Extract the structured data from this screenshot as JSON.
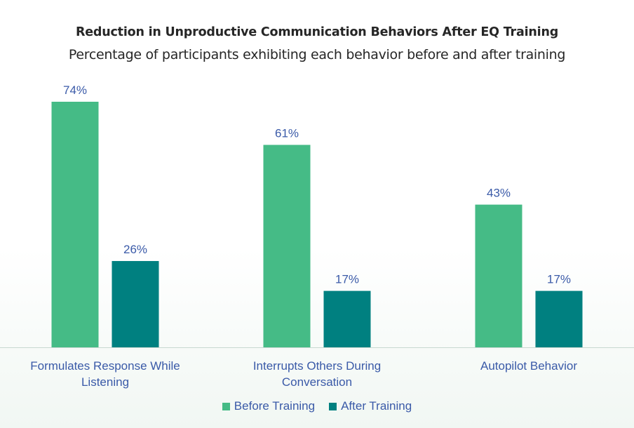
{
  "chart_data": {
    "type": "bar",
    "title": "Reduction in Unproductive Communication Behaviors After EQ Training",
    "subtitle": "Percentage of participants exhibiting each behavior before and after training",
    "categories": [
      "Formulates Response While Listening",
      "Interrupts Others During Conversation",
      "Autopilot Behavior"
    ],
    "category_lines": [
      [
        "Formulates Response While",
        "Listening"
      ],
      [
        "Interrupts Others During",
        "Conversation"
      ],
      [
        "Autopilot Behavior"
      ]
    ],
    "series": [
      {
        "name": "Before Training",
        "values": [
          74,
          61,
          43
        ],
        "color": "#45bb86"
      },
      {
        "name": "After Training",
        "values": [
          26,
          17,
          17
        ],
        "color": "#008080"
      }
    ],
    "value_suffix": "%",
    "ylim": [
      0,
      80
    ],
    "grid": false,
    "legend_position": "bottom",
    "label_color": "#3a5aa8",
    "axis_color": "#c8d8d0"
  }
}
